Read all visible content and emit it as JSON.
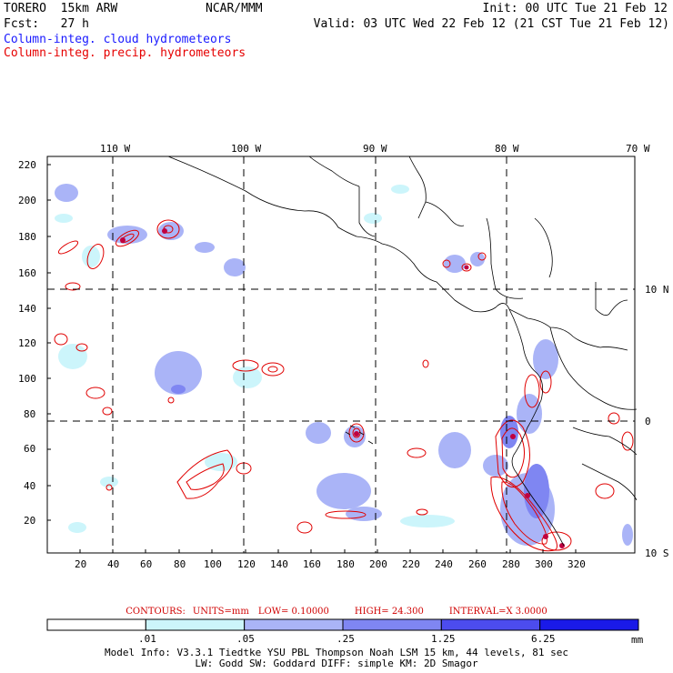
{
  "header": {
    "model": "TORERO  15km ARW",
    "org": "NCAR/MMM",
    "init": "Init: 00 UTC Tue 21 Feb 12",
    "fcst": "Fcst:   27 h",
    "valid": "Valid: 03 UTC Wed 22 Feb 12 (21 CST Tue 21 Feb 12)",
    "field_cloud": "Column-integ. cloud hydrometeors",
    "field_precip": "Column-integ. precip. hydrometeors"
  },
  "axes": {
    "lon_labels": [
      "110 W",
      "100 W",
      "90 W",
      "80 W",
      "70 W"
    ],
    "lat_labels": [
      "10 N",
      "0",
      "10 S"
    ],
    "y_ticks": [
      "20",
      "40",
      "60",
      "80",
      "100",
      "120",
      "140",
      "160",
      "180",
      "200",
      "220"
    ],
    "x_ticks": [
      "20",
      "40",
      "60",
      "80",
      "100",
      "120",
      "140",
      "160",
      "180",
      "200",
      "220",
      "240",
      "260",
      "280",
      "300",
      "320"
    ]
  },
  "contour_legend": {
    "contours": "CONTOURS:",
    "units": "UNITS=mm",
    "low": "LOW= 0.10000",
    "high": "HIGH=  24.300",
    "interval": "INTERVAL=X  3.0000"
  },
  "colorbar": {
    "labels": [
      ".01",
      ".05",
      ".25",
      "1.25",
      "6.25"
    ],
    "unit": "mm",
    "colors": [
      "#ffffff",
      "#ccf5fb",
      "#aab4f7",
      "#7f86f2",
      "#4c4cee",
      "#1a1ae8"
    ]
  },
  "footer": {
    "line1": "Model Info: V3.3.1   Tiedtke YSU PBL  Thompson    Noah LSM  15 km,   44 levels,   81 sec",
    "line2": "LW: Godd SW: Goddard DIFF: simple KM: 2D Smagor"
  }
}
